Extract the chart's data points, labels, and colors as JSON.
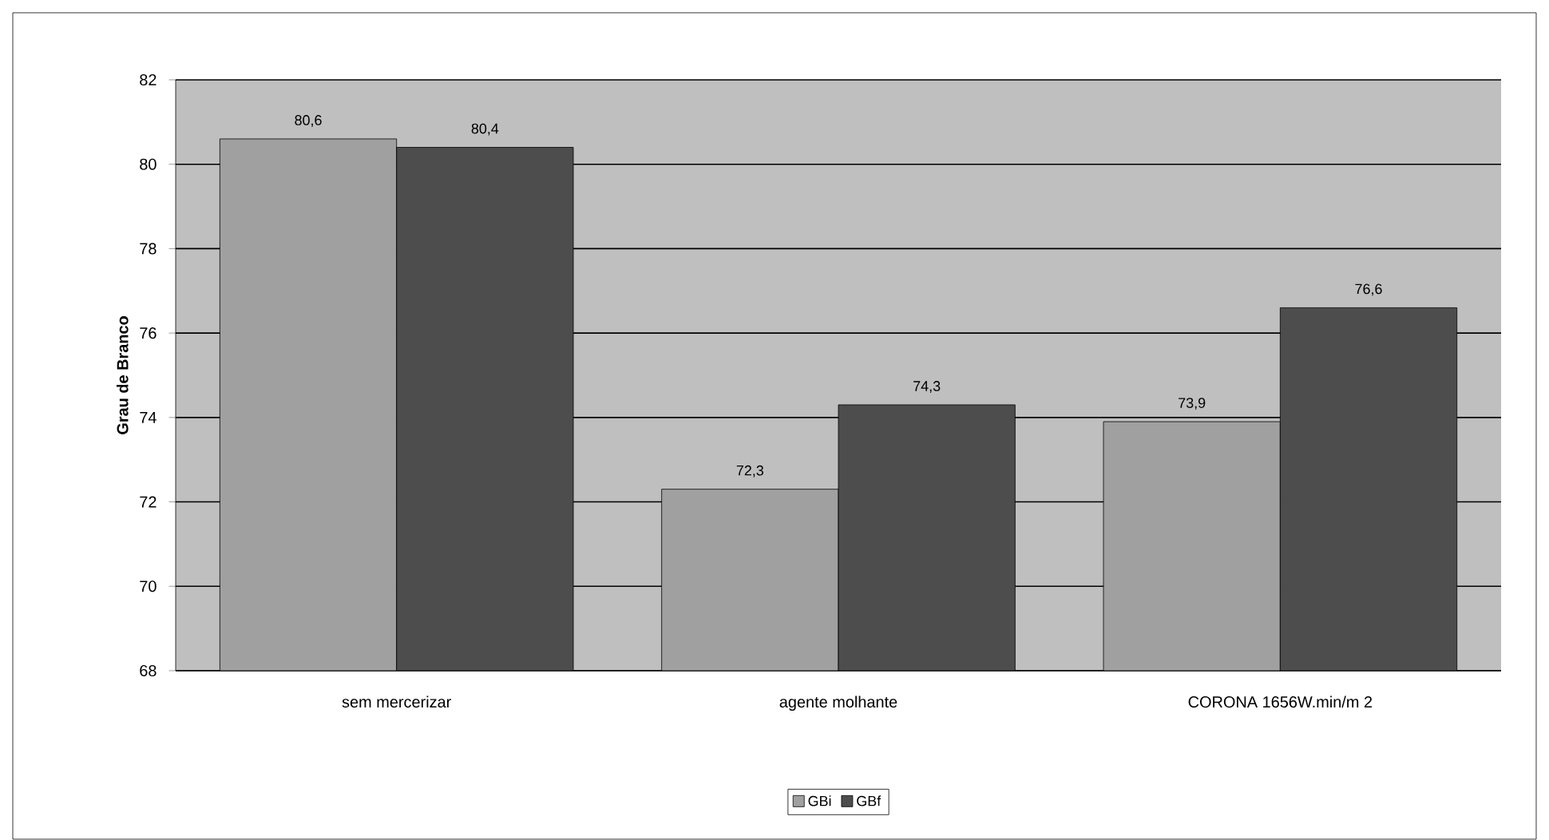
{
  "chart_data": {
    "type": "bar",
    "ylabel": "Grau de Branco",
    "categories": [
      "sem mercerizar",
      "agente molhante",
      "CORONA 1656W.min/m 2"
    ],
    "series": [
      {
        "name": "GBi",
        "color": "#a0a0a0",
        "values": [
          80.6,
          72.3,
          73.9
        ],
        "value_labels": [
          "80,6",
          "72,3",
          "73,9"
        ]
      },
      {
        "name": "GBf",
        "color": "#4d4d4d",
        "values": [
          80.4,
          74.3,
          76.6
        ],
        "value_labels": [
          "80,4",
          "74,3",
          "76,6"
        ]
      }
    ],
    "ylim": [
      68,
      82
    ],
    "yticks": [
      68,
      70,
      72,
      74,
      76,
      78,
      80,
      82
    ],
    "grid": "y",
    "legend": "bottom"
  }
}
